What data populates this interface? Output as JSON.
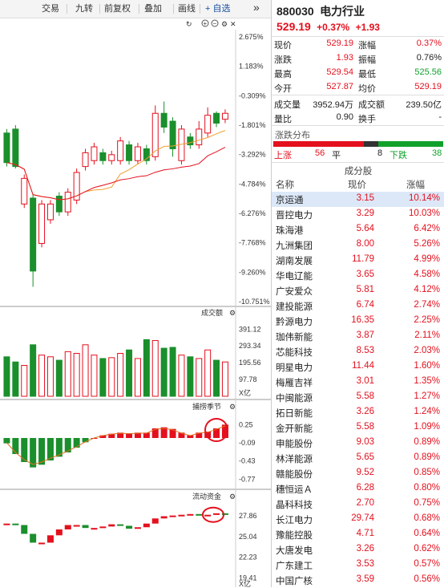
{
  "toolbar": {
    "buttons": [
      "交易",
      "九转",
      "前复权",
      "叠加",
      "画线"
    ],
    "add_pick": "+ 自选",
    "more": "»"
  },
  "chart": {
    "price_axis": [
      "2.675%",
      "1.183%",
      "-0.309%",
      "-1.801%",
      "-3.292%",
      "-4.784%",
      "-6.276%",
      "-7.768%",
      "-9.260%",
      "-10.751%"
    ],
    "volume_title": "成交额",
    "volume_axis": [
      "391.12",
      "293.34",
      "195.56",
      "97.78",
      "X亿"
    ],
    "indicator_title": "捕捞季节",
    "indicator_axis": [
      "0.25",
      "-0.09",
      "-0.43",
      "-0.77"
    ],
    "flow_title": "流动资金",
    "flow_axis": [
      "27.86",
      "25.04",
      "22.23",
      "19.41",
      "X亿"
    ],
    "colors": {
      "up": "#e4101e",
      "down": "#1a8f2c"
    }
  },
  "chart_data": {
    "type": "candlestick",
    "price_axis_pct": [
      2.675,
      1.183,
      -0.309,
      -1.801,
      -3.292,
      -4.784,
      -6.276,
      -7.768,
      -9.26,
      -10.751
    ],
    "candles_pct": [
      {
        "o": -2.2,
        "c": -3.7,
        "h": -2.0,
        "l": -3.9
      },
      {
        "o": -2.0,
        "c": -3.9,
        "h": -1.8,
        "l": -4.0
      },
      {
        "o": -5.8,
        "c": -4.5,
        "h": -4.3,
        "l": -6.0
      },
      {
        "o": -5.5,
        "c": -9.2,
        "h": -5.3,
        "l": -10.0
      },
      {
        "o": -7.8,
        "c": -5.8,
        "h": -5.6,
        "l": -8.0
      },
      {
        "o": -6.6,
        "c": -5.8,
        "h": -5.6,
        "l": -6.8
      },
      {
        "o": -5.4,
        "c": -6.2,
        "h": -5.2,
        "l": -6.4
      },
      {
        "o": -6.2,
        "c": -5.2,
        "h": -5.0,
        "l": -6.4
      },
      {
        "o": -5.6,
        "c": -4.2,
        "h": -4.0,
        "l": -5.8
      },
      {
        "o": -3.9,
        "c": -3.2,
        "h": -3.0,
        "l": -4.1
      },
      {
        "o": -3.6,
        "c": -2.9,
        "h": -2.7,
        "l": -3.8
      },
      {
        "o": -3.2,
        "c": -3.6,
        "h": -3.0,
        "l": -3.8
      },
      {
        "o": -3.6,
        "c": -3.3,
        "h": -3.1,
        "l": -3.8
      },
      {
        "o": -3.6,
        "c": -2.6,
        "h": -2.4,
        "l": -3.8
      },
      {
        "o": -2.8,
        "c": -3.6,
        "h": -2.6,
        "l": -3.8
      },
      {
        "o": -3.6,
        "c": -2.9,
        "h": -2.7,
        "l": -3.8
      },
      {
        "o": -3.0,
        "c": -3.6,
        "h": -2.8,
        "l": -3.8
      },
      {
        "o": -3.4,
        "c": -1.2,
        "h": -0.8,
        "l": -3.6
      },
      {
        "o": -1.2,
        "c": -1.9,
        "h": -0.6,
        "l": -2.2
      },
      {
        "o": -1.6,
        "c": -3.0,
        "h": -1.4,
        "l": -3.4
      },
      {
        "o": -3.6,
        "c": -2.0,
        "h": -1.8,
        "l": -3.8
      },
      {
        "o": -2.4,
        "c": -2.8,
        "h": -2.2,
        "l": -3.0
      },
      {
        "o": -2.8,
        "c": -2.0,
        "h": -1.6,
        "l": -3.0
      },
      {
        "o": -2.2,
        "c": -1.3,
        "h": -0.9,
        "l": -2.4
      },
      {
        "o": -1.2,
        "c": -1.7,
        "h": -1.1,
        "l": -1.9
      },
      {
        "o": -1.5,
        "c": -1.2,
        "h": -1.0,
        "l": -1.7
      }
    ],
    "volume": [
      230,
      200,
      180,
      300,
      240,
      230,
      210,
      260,
      250,
      300,
      240,
      220,
      225,
      250,
      270,
      220,
      330,
      325,
      280,
      285,
      240,
      230,
      220,
      270,
      210,
      200
    ],
    "volume_max": 430,
    "indicator": [
      -0.1,
      -0.3,
      -0.45,
      -0.55,
      -0.5,
      -0.42,
      -0.35,
      -0.27,
      -0.18,
      -0.08,
      0.0,
      0.05,
      0.08,
      0.1,
      0.09,
      0.1,
      0.1,
      0.18,
      0.2,
      0.17,
      0.1,
      0.05,
      0.1,
      0.12,
      0.18,
      0.25
    ],
    "indicator_range": [
      -0.9,
      0.45
    ],
    "flow": [
      26.8,
      26.6,
      25.4,
      24.2,
      24.2,
      25.2,
      26.0,
      26.6,
      26.6,
      26.2,
      26.2,
      26.4,
      26.7,
      26.5,
      26.1,
      26.3,
      26.8,
      27.5,
      27.8,
      27.9,
      28.0,
      28.1,
      28.0,
      28.0,
      28.2,
      28.1
    ],
    "flow_range": [
      19.0,
      29.5
    ]
  },
  "quote": {
    "code": "880030",
    "name": "电力行业",
    "price": "529.19",
    "change_pct": "+0.37%",
    "change": "+1.93",
    "stats": [
      {
        "l": "现价",
        "v": "529.19",
        "c": "red",
        "l2": "涨幅",
        "v2": "0.37%",
        "c2": "red"
      },
      {
        "l": "涨跌",
        "v": "1.93",
        "c": "red",
        "l2": "振幅",
        "v2": "0.76%",
        "c2": "dark"
      },
      {
        "l": "最高",
        "v": "529.54",
        "c": "red",
        "l2": "最低",
        "v2": "525.56",
        "c2": "green"
      },
      {
        "l": "今开",
        "v": "527.87",
        "c": "red",
        "l2": "均价",
        "v2": "529.19",
        "c2": "red"
      }
    ],
    "stats2": [
      {
        "l": "成交量",
        "v": "3952.94万",
        "c": "dark",
        "l2": "成交额",
        "v2": "239.50亿",
        "c2": "dark"
      },
      {
        "l": "量比",
        "v": "0.90",
        "c": "dark",
        "l2": "换手",
        "v2": "-",
        "c2": "dark"
      }
    ],
    "distribution_title": "涨跌分布",
    "up_label": "上涨",
    "up_count": "56",
    "flat_label": "平",
    "flat_count": "8",
    "down_label": "下跌",
    "down_count": "38",
    "constituents_title": "成分股",
    "col_name": "名称",
    "col_price": "现价",
    "col_change": "涨幅",
    "constituents": [
      {
        "name": "京运通",
        "price": "3.15",
        "pct": "10.14%"
      },
      {
        "name": "晋控电力",
        "price": "3.29",
        "pct": "10.03%"
      },
      {
        "name": "珠海港",
        "price": "5.64",
        "pct": "6.42%"
      },
      {
        "name": "九洲集团",
        "price": "8.00",
        "pct": "5.26%"
      },
      {
        "name": "湖南发展",
        "price": "11.79",
        "pct": "4.99%"
      },
      {
        "name": "华电辽能",
        "price": "3.65",
        "pct": "4.58%"
      },
      {
        "name": "广安爱众",
        "price": "5.81",
        "pct": "4.12%"
      },
      {
        "name": "建投能源",
        "price": "6.74",
        "pct": "2.74%"
      },
      {
        "name": "黔源电力",
        "price": "16.35",
        "pct": "2.25%"
      },
      {
        "name": "珈伟新能",
        "price": "3.87",
        "pct": "2.11%"
      },
      {
        "name": "芯能科技",
        "price": "8.53",
        "pct": "2.03%"
      },
      {
        "name": "明星电力",
        "price": "11.44",
        "pct": "1.60%"
      },
      {
        "name": "梅雁吉祥",
        "price": "3.01",
        "pct": "1.35%"
      },
      {
        "name": "中闽能源",
        "price": "5.58",
        "pct": "1.27%"
      },
      {
        "name": "拓日新能",
        "price": "3.26",
        "pct": "1.24%"
      },
      {
        "name": "金开新能",
        "price": "5.58",
        "pct": "1.09%"
      },
      {
        "name": "申能股份",
        "price": "9.03",
        "pct": "0.89%"
      },
      {
        "name": "林洋能源",
        "price": "5.65",
        "pct": "0.89%"
      },
      {
        "name": "赣能股份",
        "price": "9.52",
        "pct": "0.85%"
      },
      {
        "name": "穗恒运Ａ",
        "price": "6.28",
        "pct": "0.80%"
      },
      {
        "name": "晶科科技",
        "price": "2.70",
        "pct": "0.75%"
      },
      {
        "name": "长江电力",
        "price": "29.74",
        "pct": "0.68%"
      },
      {
        "name": "豫能控股",
        "price": "4.71",
        "pct": "0.64%"
      },
      {
        "name": "大唐发电",
        "price": "3.26",
        "pct": "0.62%"
      },
      {
        "name": "广东建工",
        "price": "3.53",
        "pct": "0.57%"
      },
      {
        "name": "中国广核",
        "price": "3.59",
        "pct": "0.56%"
      }
    ]
  }
}
